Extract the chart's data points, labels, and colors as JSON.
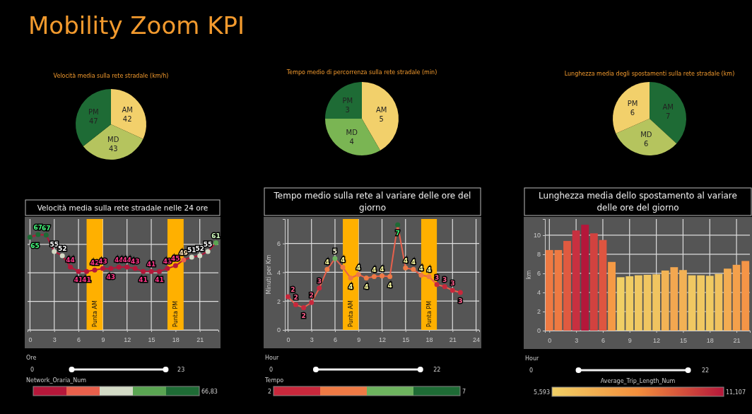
{
  "chart_data": [
    {
      "type": "other",
      "title": "Mobility Zoom KPI"
    },
    {
      "type": "pie",
      "title": "Velocità media sulla rete stradale (km/h)",
      "categories": [
        "AM",
        "MD",
        "PM"
      ],
      "values": [
        42,
        43,
        47
      ],
      "colors": [
        "#f2d06b",
        "#b5c45e",
        "#1e6b35"
      ],
      "data_labels": true
    },
    {
      "type": "pie",
      "title": "Tempo medio di percorrenza sulla rete stradale (min)",
      "categories": [
        "AM",
        "MD",
        "PM"
      ],
      "values": [
        5,
        4,
        3
      ],
      "colors": [
        "#f2d06b",
        "#7ab553",
        "#1e6b35"
      ],
      "data_labels": true
    },
    {
      "type": "pie",
      "title": "Lunghezza media degli spostamenti sulla rete stradale (km)",
      "categories": [
        "AM",
        "MD",
        "PM"
      ],
      "values": [
        7,
        6,
        6
      ],
      "colors": [
        "#1e6b35",
        "#b5c45e",
        "#f2d06b"
      ],
      "data_labels": true
    },
    {
      "type": "line",
      "title": "Velocità media sulla rete stradale nelle 24 ore",
      "x": [
        0,
        1,
        2,
        3,
        4,
        5,
        6,
        7,
        8,
        9,
        10,
        11,
        12,
        13,
        14,
        15,
        16,
        17,
        18,
        19,
        20,
        21,
        22,
        23
      ],
      "values": [
        65,
        66.83,
        66.5,
        55,
        52,
        44,
        41,
        41,
        42,
        43,
        43,
        44,
        44,
        43,
        41,
        41,
        41,
        43,
        45,
        49,
        51,
        52,
        55,
        61
      ],
      "value_labels": [
        "65",
        "67",
        "67",
        "55",
        "52",
        "44",
        "41",
        "41",
        "42",
        "43",
        "43",
        "44",
        "44",
        "43",
        "41",
        "41",
        "41",
        "43",
        "45",
        "49",
        "51",
        "52",
        "55",
        "61"
      ],
      "colors": [
        "#1e6b35",
        "#1e6b35",
        "#1e6b35",
        "#d3dac5",
        "#d3dac5",
        "#b5173a",
        "#b5173a",
        "#b5173a",
        "#b5173a",
        "#b5173a",
        "#b5173a",
        "#b5173a",
        "#b5173a",
        "#b5173a",
        "#b5173a",
        "#b5173a",
        "#b5173a",
        "#b5173a",
        "#b5173a",
        "#e8604c",
        "#d3dac5",
        "#d3dac5",
        "#d3dac5",
        "#5aa552"
      ],
      "color": "#b5173a",
      "xlim": [
        -0.3,
        23.3
      ],
      "xticks": [
        0,
        3,
        6,
        9,
        12,
        15,
        18,
        21
      ],
      "tick_labels": "x",
      "grid": true,
      "marker": "circle",
      "bands": [
        {
          "axis": "x",
          "from": 7,
          "to": 9,
          "label": "Punta AM",
          "color": "#ffb000"
        },
        {
          "axis": "x",
          "from": 17,
          "to": 19,
          "label": "Punta PM",
          "color": "#ffb000"
        }
      ],
      "annotations": [
        "Ore",
        "0",
        "23",
        "Network_Oraria_Num",
        "66,83"
      ]
    },
    {
      "type": "line",
      "title": "Tempo medio sulla rete al variare delle ore del giorno",
      "ylabel": "Minuti per Km",
      "x": [
        0,
        1,
        2,
        3,
        4,
        5,
        6,
        7,
        8,
        9,
        10,
        11,
        12,
        13,
        14,
        15,
        16,
        17,
        18,
        19,
        20,
        21,
        22
      ],
      "values": [
        2.3,
        1.75,
        1.55,
        1.9,
        2.9,
        4.2,
        4.95,
        4.35,
        3.6,
        3.85,
        3.6,
        3.7,
        3.75,
        3.7,
        7.3,
        4.3,
        4.2,
        3.8,
        3.7,
        3.15,
        3.0,
        2.75,
        2.6
      ],
      "value_labels": [
        "2",
        "2",
        "2",
        "2",
        "3",
        "4",
        "5",
        "4",
        "4",
        "4",
        "4",
        "4",
        "4",
        "4",
        "7",
        "4",
        "4",
        "4",
        "4",
        "3",
        "3",
        "3",
        "3"
      ],
      "colors": [
        "#c8283c",
        "#c8283c",
        "#c8283c",
        "#c8283c",
        "#c8283c",
        "#ee7a45",
        "#6db35e",
        "#ee7a45",
        "#ee7a45",
        "#ee7a45",
        "#ee7a45",
        "#ee7a45",
        "#ee7a45",
        "#ee7a45",
        "#1e6b35",
        "#ee7a45",
        "#ee7a45",
        "#ee7a45",
        "#ee7a45",
        "#c8283c",
        "#c8283c",
        "#c8283c",
        "#c8283c"
      ],
      "color": "#e8604c",
      "xlim": [
        -0.4,
        24.4
      ],
      "xticks": [
        0,
        3,
        6,
        9,
        12,
        15,
        18,
        21,
        24
      ],
      "ylim": [
        0,
        7.7
      ],
      "yticks": [
        0,
        2,
        4,
        6
      ],
      "grid": true,
      "marker": "circle",
      "bands": [
        {
          "axis": "x",
          "from": 7,
          "to": 9,
          "label": "Punta AM",
          "color": "#ffb000"
        },
        {
          "axis": "x",
          "from": 17,
          "to": 19,
          "label": "Punta PM",
          "color": "#ffb000"
        }
      ],
      "annotations": [
        "Hour",
        "0",
        "22",
        "Tempo",
        "2",
        "7"
      ]
    },
    {
      "type": "bar",
      "title": "Lunghezza media dello spostamento al variare delle ore del giorno",
      "ylabel": "km",
      "x": [
        0,
        1,
        2,
        3,
        4,
        5,
        6,
        7,
        8,
        9,
        10,
        11,
        12,
        13,
        14,
        15,
        16,
        17,
        18,
        19,
        20,
        21,
        22
      ],
      "values": [
        8.45,
        8.45,
        9.4,
        10.5,
        11.1,
        10.2,
        9.5,
        7.2,
        5.6,
        5.7,
        5.8,
        5.85,
        5.9,
        6.3,
        6.65,
        6.35,
        5.8,
        5.8,
        5.75,
        5.95,
        6.5,
        6.9,
        7.3
      ],
      "colors": [
        "#ee7a42",
        "#ee7a42",
        "#e05a40",
        "#c83040",
        "#b5173a",
        "#d2423f",
        "#de5540",
        "#f59a45",
        "#f0cf65",
        "#f0cc63",
        "#f0c862",
        "#f0c661",
        "#f0c460",
        "#f2b355",
        "#f3a750",
        "#f2b155",
        "#f0c862",
        "#f0c862",
        "#f0ca62",
        "#f0c25f",
        "#f3ac52",
        "#f4a04b",
        "#f59547"
      ],
      "xlim": [
        -0.5,
        22.5
      ],
      "xticks": [
        0,
        3,
        6,
        9,
        12,
        15,
        18,
        21
      ],
      "ylim": [
        0,
        11.7
      ],
      "yticks": [
        0,
        2,
        4,
        6,
        8,
        10
      ],
      "grid": true,
      "annotations": [
        "Hour",
        "0",
        "22",
        "Average_Trip_Length_Num",
        "5,593",
        "11,107"
      ]
    }
  ]
}
